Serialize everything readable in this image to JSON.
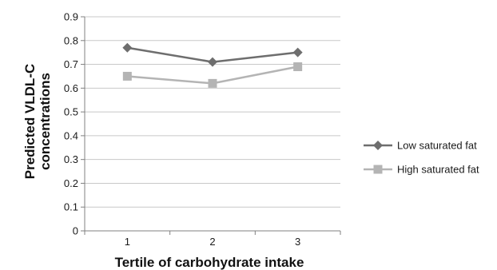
{
  "chart_data": {
    "type": "line",
    "title": "",
    "xlabel": "Tertile of carbohydrate intake",
    "ylabel_lines": [
      "Predicted VLDL-C",
      "concentrations"
    ],
    "categories": [
      "1",
      "2",
      "3"
    ],
    "ylim": [
      0,
      0.9
    ],
    "yticks": [
      "0",
      "0.1",
      "0.2",
      "0.3",
      "0.4",
      "0.5",
      "0.6",
      "0.7",
      "0.8",
      "0.9"
    ],
    "grid": true,
    "legend_position": "right",
    "series": [
      {
        "name": "Low saturated fat",
        "values": [
          0.77,
          0.71,
          0.75
        ],
        "color": "#6e6e6e",
        "marker": "diamond"
      },
      {
        "name": "High saturated fat",
        "values": [
          0.65,
          0.62,
          0.69
        ],
        "color": "#b4b4b4",
        "marker": "square"
      }
    ]
  }
}
